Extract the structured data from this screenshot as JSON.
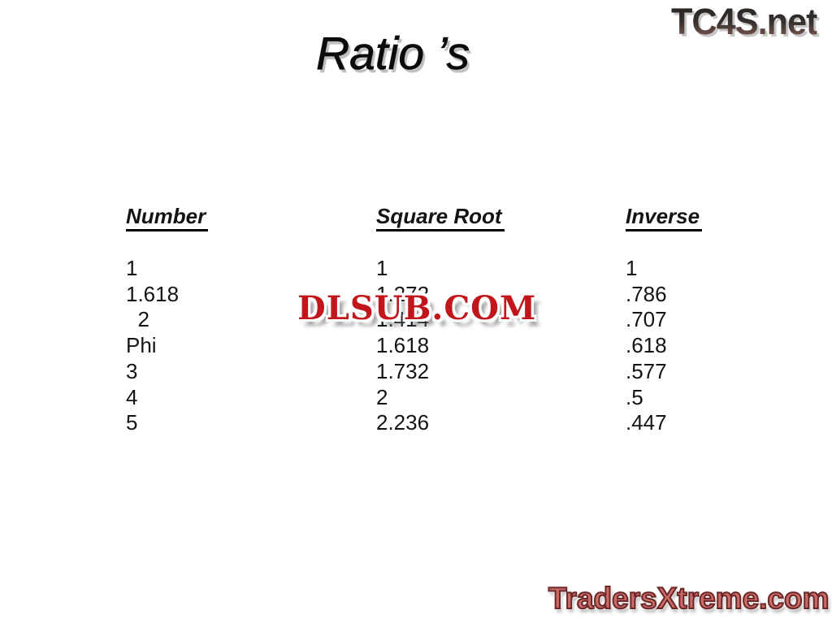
{
  "page": {
    "background_color": "#ffffff",
    "title": "Ratio ’s"
  },
  "watermarks": {
    "tc4s": {
      "text": "TC4S.net",
      "gradient_top": "#242220",
      "gradient_bottom": "#8f6057"
    },
    "dlsub": {
      "text": "DLSUB.COM",
      "color": "#c2161d"
    },
    "tradersxtreme": {
      "text": "TradersXtreme.com",
      "color": "#cb6b68",
      "outline_color": "#6b2627"
    }
  },
  "table": {
    "columns": [
      {
        "header": "Number",
        "values": [
          "1",
          "1.618",
          "  2",
          "Phi",
          "3",
          "4",
          "5"
        ]
      },
      {
        "header": "Square Root",
        "values": [
          "1",
          "1.272",
          "1.414",
          "1.618",
          "1.732",
          "2",
          "2.236"
        ]
      },
      {
        "header": "Inverse",
        "values": [
          "1",
          ".786",
          ".707",
          ".618",
          ".577",
          ".5",
          ".447"
        ]
      }
    ]
  }
}
